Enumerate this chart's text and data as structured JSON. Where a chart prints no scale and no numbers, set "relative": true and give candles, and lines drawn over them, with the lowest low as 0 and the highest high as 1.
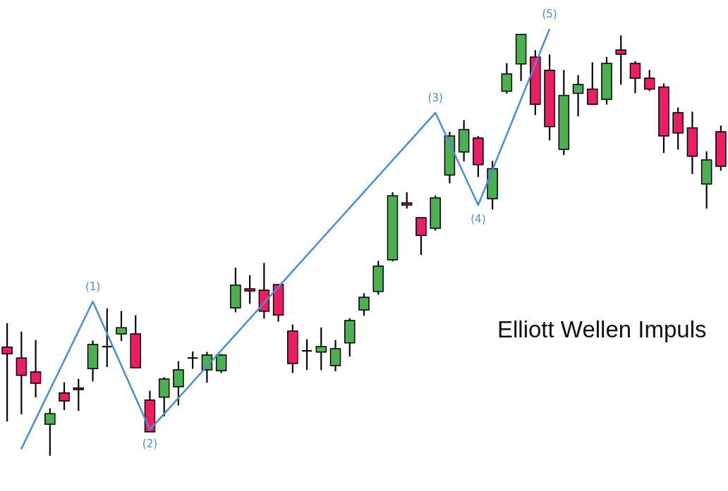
{
  "chart_data": {
    "type": "candlestick",
    "relative": true,
    "categories": [
      null,
      null,
      null,
      null,
      null,
      null,
      null,
      null,
      null,
      null,
      null,
      null,
      null,
      null,
      null,
      null,
      null,
      null,
      null,
      null,
      null,
      null,
      null,
      null,
      null,
      null,
      null,
      null,
      null,
      null,
      null,
      null,
      null,
      null,
      null,
      null,
      null,
      null,
      null,
      null,
      null,
      null,
      null,
      null,
      null,
      null,
      null,
      null,
      null,
      null,
      null
    ],
    "series": [
      {
        "ohlc": [
          [
            0.258,
            0.314,
            0.082,
            0.242
          ],
          [
            0.232,
            0.294,
            0.099,
            0.191
          ],
          [
            0.199,
            0.274,
            0.139,
            0.172
          ],
          [
            0.075,
            0.112,
            0,
            0.1
          ],
          [
            0.149,
            0.174,
            0.109,
            0.13
          ],
          [
            0.161,
            0.182,
            0.107,
            0.157
          ],
          [
            0.207,
            0.273,
            0.177,
            0.264
          ],
          [
            0.259,
            0.349,
            0.211,
            0.259
          ],
          [
            0.289,
            0.343,
            0.273,
            0.304
          ],
          [
            0.289,
            0.333,
            0.209,
            0.209
          ],
          [
            0.132,
            0.154,
            0.057,
            0.057
          ],
          [
            0.139,
            0.186,
            0.094,
            0.182
          ],
          [
            0.164,
            0.224,
            0.12,
            0.204
          ],
          [
            0.232,
            0.247,
            0.207,
            0.232
          ],
          [
            0.204,
            0.246,
            0.174,
            0.239
          ],
          [
            0.202,
            0.241,
            0.197,
            0.239
          ],
          [
            0.351,
            0.446,
            0.341,
            0.405
          ],
          [
            0.396,
            0.428,
            0.361,
            0.391
          ],
          [
            0.393,
            0.457,
            0.326,
            0.343
          ],
          [
            0.406,
            0.406,
            0.319,
            0.334
          ],
          [
            0.296,
            0.311,
            0.197,
            0.219
          ],
          [
            0.249,
            0.276,
            0.204,
            0.249
          ],
          [
            0.246,
            0.304,
            0.204,
            0.259
          ],
          [
            0.214,
            0.274,
            0.201,
            0.254
          ],
          [
            0.268,
            0.326,
            0.236,
            0.321
          ],
          [
            0.346,
            0.385,
            0.333,
            0.376
          ],
          [
            0.39,
            0.462,
            0.383,
            0.45
          ],
          [
            0.465,
            0.625,
            0.462,
            0.617
          ],
          [
            0.6,
            0.625,
            0.587,
            0.595
          ],
          [
            0.565,
            0.565,
            0.477,
            0.523
          ],
          [
            0.54,
            0.617,
            0.535,
            0.612
          ],
          [
            0.666,
            0.768,
            0.647,
            0.759
          ],
          [
            0.721,
            0.796,
            0.699,
            0.774
          ],
          [
            0.754,
            0.758,
            0.662,
            0.691
          ],
          [
            0.61,
            0.699,
            0.585,
            0.681
          ],
          [
            0.865,
            0.931,
            0.86,
            0.906
          ],
          [
            0.93,
            1,
            0.89,
            1
          ],
          [
            0.946,
            0.962,
            0.809,
            0.834
          ],
          [
            0.915,
            0.952,
            0.749,
            0.781
          ],
          [
            0.727,
            0.915,
            0.714,
            0.855
          ],
          [
            0.86,
            0.903,
            0.806,
            0.881
          ],
          [
            0.87,
            0.933,
            0.834,
            0.834
          ],
          [
            0.846,
            0.946,
            0.834,
            0.931
          ],
          [
            0.963,
            0.997,
            0.881,
            0.953
          ],
          [
            0.931,
            0.936,
            0.861,
            0.896
          ],
          [
            0.896,
            0.915,
            0.866,
            0.87
          ],
          [
            0.875,
            0.883,
            0.719,
            0.759
          ],
          [
            0.814,
            0.826,
            0.727,
            0.766
          ],
          [
            0.778,
            0.816,
            0.669,
            0.711
          ],
          [
            0.645,
            0.722,
            0.587,
            0.702
          ],
          [
            0.769,
            0.783,
            0.677,
            0.687
          ]
        ],
        "colors": [
          "#e91e63",
          "#e91e63",
          "#e91e63",
          "#4caf50",
          "#e91e63",
          "#e91e63",
          "#4caf50",
          "#000000",
          "#4caf50",
          "#e91e63",
          "#e91e63",
          "#4caf50",
          "#4caf50",
          "#000000",
          "#4caf50",
          "#4caf50",
          "#4caf50",
          "#e91e63",
          "#e91e63",
          "#e91e63",
          "#e91e63",
          "#000000",
          "#4caf50",
          "#4caf50",
          "#4caf50",
          "#4caf50",
          "#4caf50",
          "#4caf50",
          "#e91e63",
          "#e91e63",
          "#4caf50",
          "#4caf50",
          "#4caf50",
          "#e91e63",
          "#4caf50",
          "#4caf50",
          "#4caf50",
          "#e91e63",
          "#e91e63",
          "#4caf50",
          "#4caf50",
          "#e91e63",
          "#4caf50",
          "#e91e63",
          "#e91e63",
          "#e91e63",
          "#e91e63",
          "#e91e63",
          "#e91e63",
          "#4caf50",
          "#e91e63"
        ]
      },
      {
        "type": "line",
        "color": "#4a8fd6",
        "values": [
          null,
          0.017,
          null,
          null,
          null,
          null,
          0.366,
          null,
          null,
          null,
          0.062,
          null,
          null,
          null,
          null,
          null,
          null,
          null,
          null,
          null,
          null,
          null,
          null,
          null,
          null,
          null,
          null,
          null,
          null,
          null,
          0.814,
          null,
          null,
          0.595,
          null,
          null,
          null,
          null,
          1.013,
          null,
          null,
          null,
          null,
          null,
          null,
          null,
          null,
          null,
          null,
          null,
          null
        ]
      }
    ],
    "annotations": [
      {
        "text": "(1)",
        "y": 0.366
      },
      {
        "text": "(2)",
        "y": 0.062
      },
      {
        "text": "(3)",
        "y": 0.814
      },
      {
        "text": "(4)",
        "y": 0.595
      },
      {
        "text": "(5)",
        "y": 1.013
      },
      "Elliott Wellen Impuls"
    ]
  }
}
